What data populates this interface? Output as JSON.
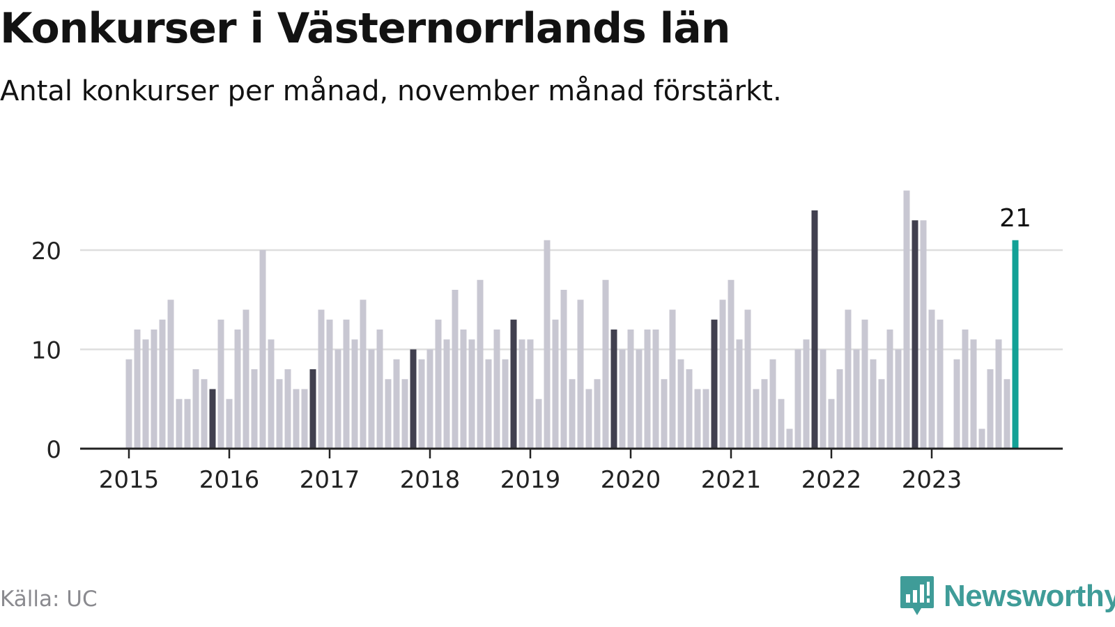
{
  "title": "Konkurser i Västernorrlands län",
  "subtitle": "Antal konkurser per månad, november månad förstärkt.",
  "source": "Källa: UC",
  "brand": {
    "name": "Newsworthy",
    "icon": "newsworthy-logo-icon"
  },
  "colors": {
    "bar": "#c8c7d2",
    "highlight": "#41404f",
    "latest": "#12a196",
    "grid": "#dedede",
    "axis": "#222222",
    "brand": "#3f9c98"
  },
  "chart_data": {
    "type": "bar",
    "start": "2015-01",
    "highlight_month": "November",
    "values": [
      9,
      12,
      11,
      12,
      13,
      15,
      5,
      5,
      8,
      7,
      6,
      13,
      5,
      12,
      14,
      8,
      20,
      11,
      7,
      8,
      6,
      6,
      8,
      14,
      13,
      10,
      13,
      11,
      15,
      10,
      12,
      7,
      9,
      7,
      10,
      9,
      10,
      13,
      11,
      16,
      12,
      11,
      17,
      9,
      12,
      9,
      13,
      11,
      11,
      5,
      21,
      13,
      16,
      7,
      15,
      6,
      7,
      17,
      12,
      10,
      12,
      10,
      12,
      12,
      7,
      14,
      9,
      8,
      6,
      6,
      13,
      15,
      17,
      11,
      14,
      6,
      7,
      9,
      5,
      2,
      10,
      11,
      24,
      10,
      5,
      8,
      14,
      10,
      13,
      9,
      7,
      12,
      10,
      26,
      23,
      23,
      14,
      13,
      0,
      9,
      12,
      11,
      2,
      8,
      11,
      7,
      21
    ],
    "xticks": [
      "2015",
      "2016",
      "2017",
      "2018",
      "2019",
      "2020",
      "2021",
      "2022",
      "2023"
    ],
    "yticks": [
      0,
      10,
      20
    ],
    "ylim": [
      0,
      26
    ],
    "grid": true,
    "annotation": {
      "text": "21",
      "target": "last"
    }
  }
}
